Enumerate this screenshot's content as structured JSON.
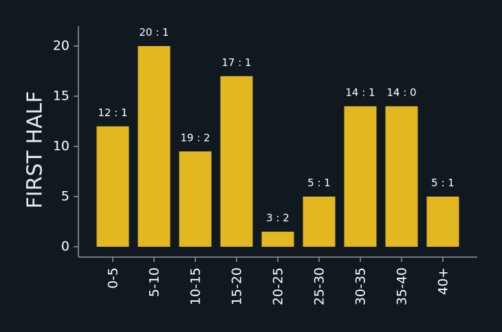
{
  "chart_data": {
    "type": "bar",
    "ylabel": "FIRST HALF",
    "xlabel": "",
    "categories": [
      "0-5",
      "5-10",
      "10-15",
      "15-20",
      "20-25",
      "25-30",
      "30-35",
      "35-40",
      "40+"
    ],
    "values": [
      12,
      20,
      9.5,
      17,
      1.5,
      5,
      14,
      14,
      5
    ],
    "data_labels": [
      "12 : 1",
      "20 : 1",
      "19 : 2",
      "17 : 1",
      "3 : 2",
      "5 : 1",
      "14 : 1",
      "14 : 0",
      "5 : 1"
    ],
    "yticks": [
      0,
      5,
      10,
      15,
      20
    ],
    "ylim": [
      0,
      22
    ],
    "grid": false,
    "colors": {
      "bar": "#e3b71f",
      "background": "#101820",
      "axis": "#8a9aa3"
    }
  }
}
